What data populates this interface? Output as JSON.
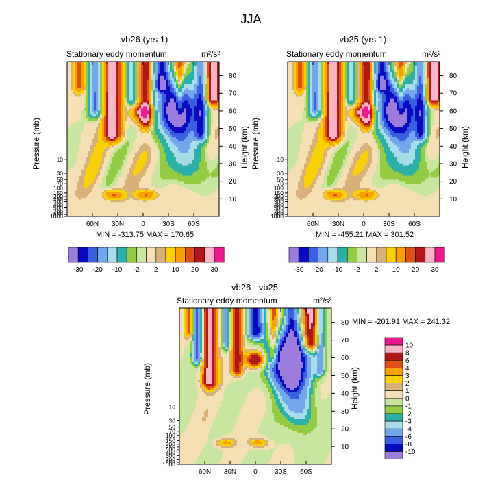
{
  "figure_title": "JJA",
  "colors": {
    "palette_main": [
      "#9c7ddc",
      "#0a0ac0",
      "#3a5fe0",
      "#74a6ec",
      "#a8dce8",
      "#2ab0a8",
      "#93cc42",
      "#c8e6a0",
      "#f4e0b4",
      "#d8b07a",
      "#f8d200",
      "#f8a000",
      "#e05010",
      "#b01818",
      "#f8b4c8",
      "#f01890"
    ],
    "palette_diff": [
      "#9c7ddc",
      "#0a0ac0",
      "#3a5fe0",
      "#74a6ec",
      "#a8dce8",
      "#2ab0a8",
      "#93cc42",
      "#c8e6a0",
      "#f4e0b4",
      "#d8b07a",
      "#f8d200",
      "#f8a000",
      "#e05010",
      "#b01818",
      "#f8b4c8",
      "#f01890"
    ]
  },
  "panels": [
    {
      "title": "vb26 (yrs 1)",
      "subtitle": "Stationary eddy momentum",
      "units": "m²/s²",
      "min_max": "MIN = -313.75  MAX = 170.65",
      "ylabel_left": "Pressure (mb)",
      "ylabel_right": "Height (km)"
    },
    {
      "title": "vb25 (yrs 1)",
      "subtitle": "Stationary eddy momentum",
      "units": "m²/s²",
      "min_max": "MIN = -455.21  MAX = 301.52",
      "ylabel_left": "Pressure (mb)",
      "ylabel_right": "Height (km)"
    },
    {
      "title": "vb26 - vb25",
      "subtitle": "Stationary eddy momentum",
      "units": "m²/s²",
      "min_max": "MIN = -201.91  MAX = 241.32",
      "ylabel_left": "Pressure (mb)",
      "ylabel_right": "Height (km)"
    }
  ],
  "chart_data": [
    {
      "type": "heatmap",
      "title": "vb26 (yrs 1)",
      "subtitle": "Stationary eddy momentum",
      "x_ticks": [
        "60N",
        "30N",
        "0",
        "30S",
        "60S"
      ],
      "x_range": [
        90,
        -90
      ],
      "pressure_ticks": [
        "10",
        "30",
        "50",
        "70",
        "100",
        "150",
        "200",
        "250",
        "300",
        "400",
        "500",
        "700",
        "850",
        "1000"
      ],
      "height_ticks_km": [
        10,
        20,
        30,
        40,
        50,
        60,
        70,
        80
      ],
      "height_range_km": [
        0,
        88
      ],
      "data_range": [
        -313.75,
        170.65
      ],
      "colorbar_labels": [
        "-30",
        "-20",
        "-10",
        "-2",
        "2",
        "10",
        "20",
        "30"
      ]
    },
    {
      "type": "heatmap",
      "title": "vb25 (yrs 1)",
      "subtitle": "Stationary eddy momentum",
      "x_ticks": [
        "60N",
        "30N",
        "0",
        "30S",
        "60S"
      ],
      "x_range": [
        90,
        -90
      ],
      "pressure_ticks": [
        "10",
        "30",
        "50",
        "70",
        "100",
        "150",
        "200",
        "250",
        "300",
        "400",
        "500",
        "700",
        "850",
        "1000"
      ],
      "height_ticks_km": [
        10,
        20,
        30,
        40,
        50,
        60,
        70,
        80
      ],
      "height_range_km": [
        0,
        88
      ],
      "data_range": [
        -455.21,
        301.52
      ],
      "colorbar_labels": [
        "-30",
        "-20",
        "-10",
        "-2",
        "2",
        "10",
        "20",
        "30"
      ]
    },
    {
      "type": "heatmap",
      "title": "vb26 - vb25",
      "subtitle": "Stationary eddy momentum",
      "x_ticks": [
        "60N",
        "30N",
        "0",
        "30S",
        "60S"
      ],
      "x_range": [
        90,
        -90
      ],
      "pressure_ticks": [
        "10",
        "30",
        "50",
        "70",
        "100",
        "150",
        "200",
        "250",
        "300",
        "400",
        "500",
        "700",
        "850",
        "1000"
      ],
      "height_ticks_km": [
        10,
        20,
        30,
        40,
        50,
        60,
        70,
        80
      ],
      "height_range_km": [
        0,
        88
      ],
      "data_range": [
        -201.91,
        241.32
      ],
      "colorbar_labels": [
        "10",
        "8",
        "6",
        "4",
        "3",
        "2",
        "1",
        "0",
        "-1",
        "-2",
        "-3",
        "-4",
        "-6",
        "-8",
        "-10"
      ]
    }
  ]
}
